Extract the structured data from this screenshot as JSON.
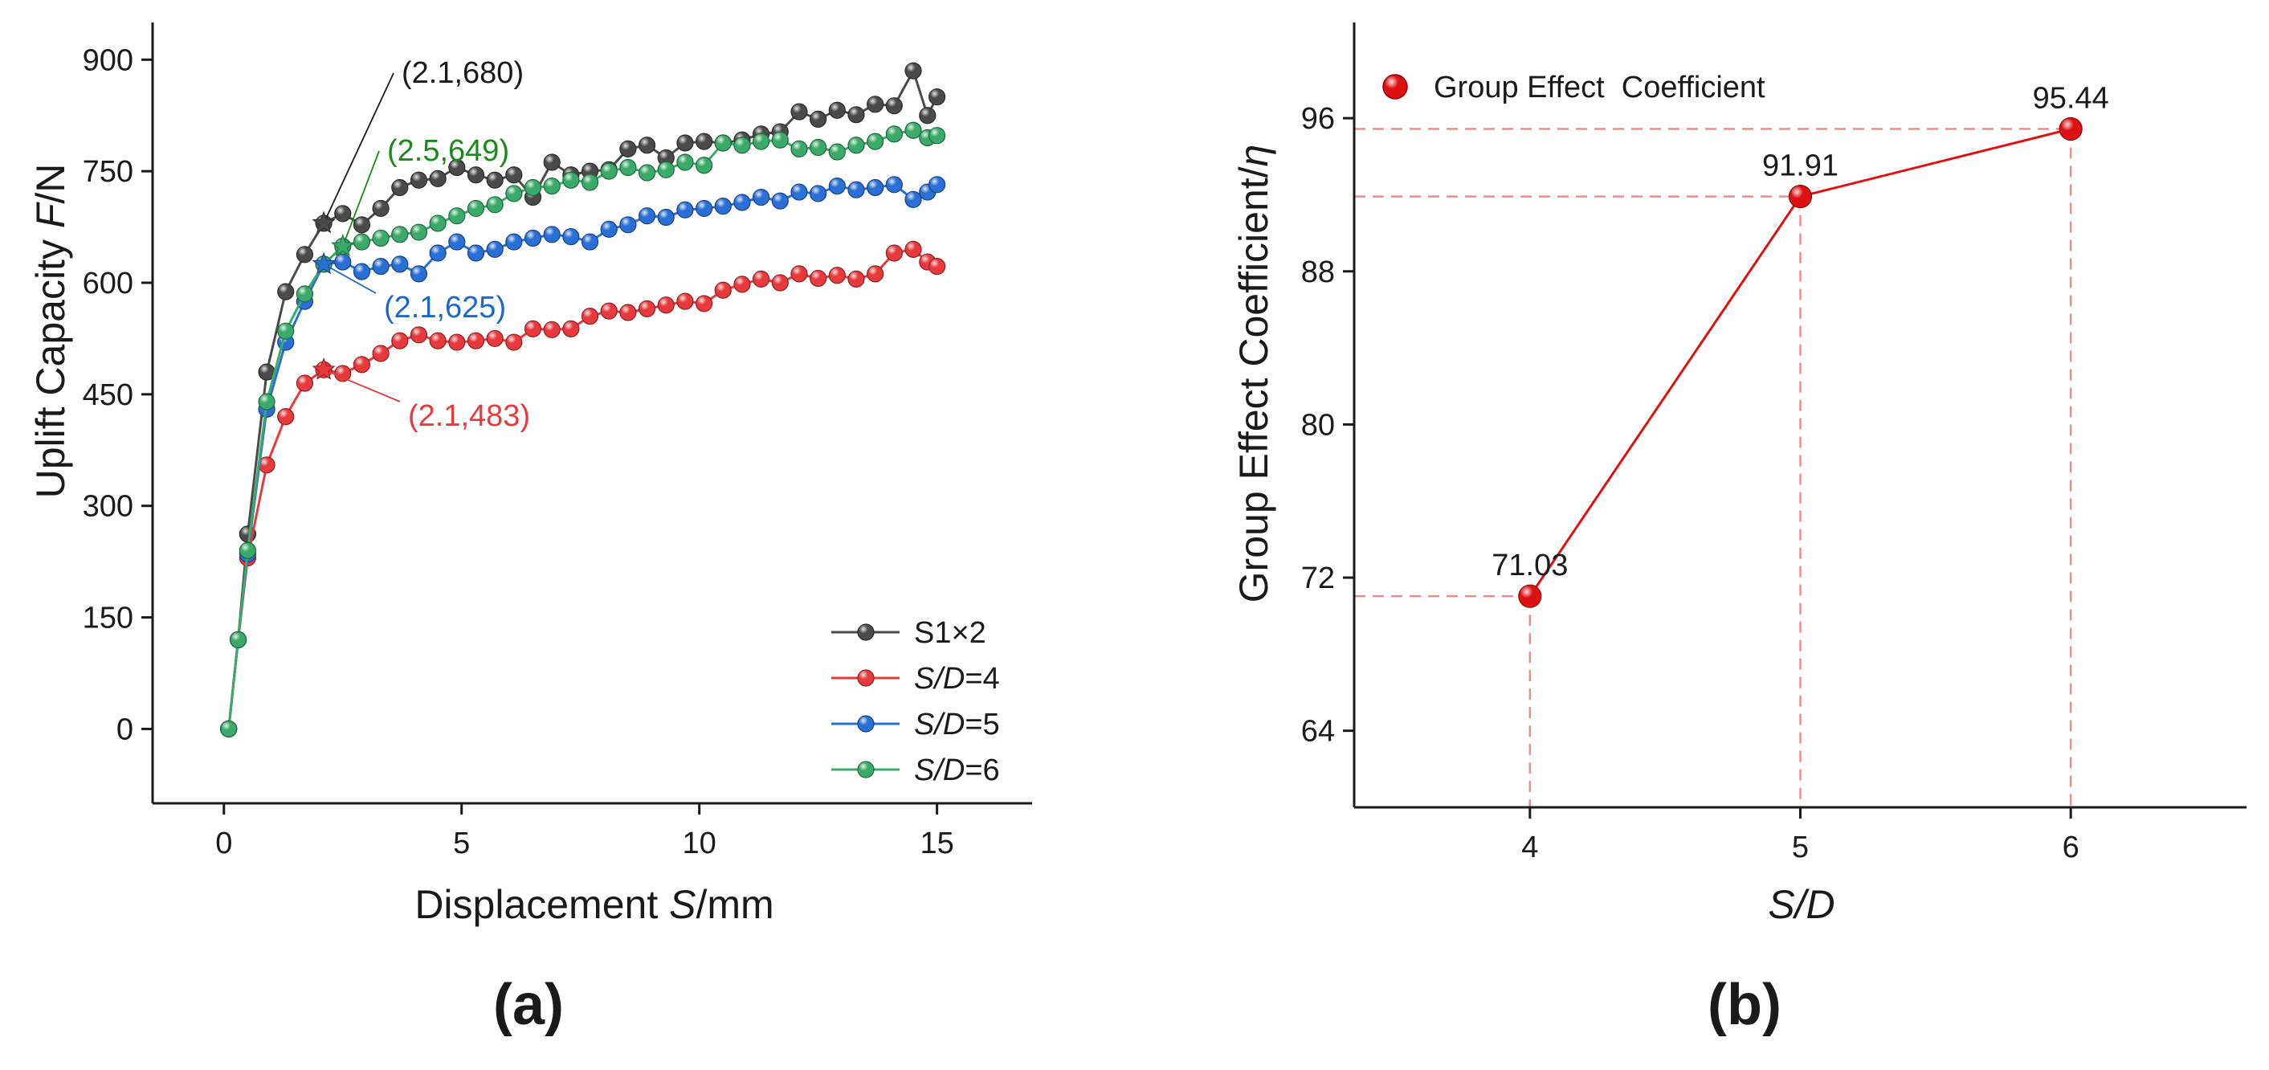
{
  "chart_data": [
    {
      "type": "line",
      "panel_label": "(a)",
      "title": "",
      "xlabel": {
        "pre": "Displacement ",
        "var": "S",
        "post": "/mm"
      },
      "ylabel": {
        "pre": "Uplift Capacity ",
        "var": "F",
        "post": "/N"
      },
      "xlim": [
        -1.5,
        17
      ],
      "ylim": [
        -100,
        950
      ],
      "xticks": [
        0,
        5,
        10,
        15
      ],
      "yticks": [
        0,
        150,
        300,
        450,
        600,
        750,
        900
      ],
      "legend_position": "bottom-right",
      "series": [
        {
          "name": "S1×2",
          "legend": {
            "var": "",
            "text": "S1×2"
          },
          "color": "#4a4a4a",
          "points": [
            [
              0.1,
              0
            ],
            [
              0.3,
              120
            ],
            [
              0.5,
              262
            ],
            [
              0.9,
              480
            ],
            [
              1.3,
              588
            ],
            [
              1.7,
              638
            ],
            [
              2.1,
              680
            ],
            [
              2.5,
              693
            ],
            [
              2.9,
              678
            ],
            [
              3.3,
              700
            ],
            [
              3.7,
              728
            ],
            [
              4.1,
              738
            ],
            [
              4.5,
              740
            ],
            [
              4.9,
              755
            ],
            [
              5.3,
              745
            ],
            [
              5.7,
              738
            ],
            [
              6.1,
              745
            ],
            [
              6.5,
              715
            ],
            [
              6.9,
              762
            ],
            [
              7.3,
              745
            ],
            [
              7.7,
              750
            ],
            [
              8.1,
              752
            ],
            [
              8.5,
              780
            ],
            [
              8.9,
              785
            ],
            [
              9.3,
              768
            ],
            [
              9.7,
              788
            ],
            [
              10.1,
              790
            ],
            [
              10.5,
              788
            ],
            [
              10.9,
              792
            ],
            [
              11.3,
              800
            ],
            [
              11.7,
              803
            ],
            [
              12.1,
              830
            ],
            [
              12.5,
              820
            ],
            [
              12.9,
              832
            ],
            [
              13.3,
              826
            ],
            [
              13.7,
              840
            ],
            [
              14.1,
              838
            ],
            [
              14.5,
              885
            ],
            [
              14.8,
              825
            ],
            [
              15.0,
              850
            ]
          ]
        },
        {
          "name": "S/D=4",
          "legend": {
            "var": "S/D",
            "text": "=4"
          },
          "color": "#e8393d",
          "points": [
            [
              0.1,
              0
            ],
            [
              0.3,
              120
            ],
            [
              0.5,
              230
            ],
            [
              0.9,
              355
            ],
            [
              1.3,
              420
            ],
            [
              1.7,
              465
            ],
            [
              2.1,
              483
            ],
            [
              2.5,
              478
            ],
            [
              2.9,
              490
            ],
            [
              3.3,
              505
            ],
            [
              3.7,
              522
            ],
            [
              4.1,
              530
            ],
            [
              4.5,
              522
            ],
            [
              4.9,
              520
            ],
            [
              5.3,
              522
            ],
            [
              5.7,
              525
            ],
            [
              6.1,
              520
            ],
            [
              6.5,
              538
            ],
            [
              6.9,
              537
            ],
            [
              7.3,
              538
            ],
            [
              7.7,
              555
            ],
            [
              8.1,
              562
            ],
            [
              8.5,
              560
            ],
            [
              8.9,
              565
            ],
            [
              9.3,
              570
            ],
            [
              9.7,
              575
            ],
            [
              10.1,
              572
            ],
            [
              10.5,
              590
            ],
            [
              10.9,
              598
            ],
            [
              11.3,
              605
            ],
            [
              11.7,
              600
            ],
            [
              12.1,
              612
            ],
            [
              12.5,
              606
            ],
            [
              12.9,
              610
            ],
            [
              13.3,
              605
            ],
            [
              13.7,
              612
            ],
            [
              14.1,
              640
            ],
            [
              14.5,
              645
            ],
            [
              14.8,
              628
            ],
            [
              15.0,
              622
            ]
          ]
        },
        {
          "name": "S/D=5",
          "legend": {
            "var": "S/D",
            "text": "=5"
          },
          "color": "#2a6fd6",
          "points": [
            [
              0.1,
              0
            ],
            [
              0.3,
              120
            ],
            [
              0.5,
              235
            ],
            [
              0.9,
              430
            ],
            [
              1.3,
              520
            ],
            [
              1.7,
              575
            ],
            [
              2.1,
              625
            ],
            [
              2.5,
              628
            ],
            [
              2.9,
              615
            ],
            [
              3.3,
              622
            ],
            [
              3.7,
              625
            ],
            [
              4.1,
              612
            ],
            [
              4.5,
              640
            ],
            [
              4.9,
              655
            ],
            [
              5.3,
              640
            ],
            [
              5.7,
              645
            ],
            [
              6.1,
              655
            ],
            [
              6.5,
              660
            ],
            [
              6.9,
              665
            ],
            [
              7.3,
              662
            ],
            [
              7.7,
              655
            ],
            [
              8.1,
              672
            ],
            [
              8.5,
              678
            ],
            [
              8.9,
              690
            ],
            [
              9.3,
              688
            ],
            [
              9.7,
              698
            ],
            [
              10.1,
              700
            ],
            [
              10.5,
              703
            ],
            [
              10.9,
              708
            ],
            [
              11.3,
              715
            ],
            [
              11.7,
              710
            ],
            [
              12.1,
              722
            ],
            [
              12.5,
              720
            ],
            [
              12.9,
              730
            ],
            [
              13.3,
              725
            ],
            [
              13.7,
              728
            ],
            [
              14.1,
              732
            ],
            [
              14.5,
              712
            ],
            [
              14.8,
              722
            ],
            [
              15.0,
              732
            ]
          ]
        },
        {
          "name": "S/D=6",
          "legend": {
            "var": "S/D",
            "text": "=6"
          },
          "color": "#3aaa6a",
          "points": [
            [
              0.1,
              0
            ],
            [
              0.3,
              120
            ],
            [
              0.5,
              240
            ],
            [
              0.9,
              440
            ],
            [
              1.3,
              535
            ],
            [
              1.7,
              585
            ],
            [
              2.1,
              625
            ],
            [
              2.5,
              649
            ],
            [
              2.9,
              655
            ],
            [
              3.3,
              660
            ],
            [
              3.7,
              665
            ],
            [
              4.1,
              668
            ],
            [
              4.5,
              680
            ],
            [
              4.9,
              690
            ],
            [
              5.3,
              700
            ],
            [
              5.7,
              705
            ],
            [
              6.1,
              720
            ],
            [
              6.5,
              728
            ],
            [
              6.9,
              730
            ],
            [
              7.3,
              738
            ],
            [
              7.7,
              735
            ],
            [
              8.1,
              750
            ],
            [
              8.5,
              755
            ],
            [
              8.9,
              748
            ],
            [
              9.3,
              752
            ],
            [
              9.7,
              762
            ],
            [
              10.1,
              758
            ],
            [
              10.5,
              788
            ],
            [
              10.9,
              785
            ],
            [
              11.3,
              790
            ],
            [
              11.7,
              792
            ],
            [
              12.1,
              780
            ],
            [
              12.5,
              782
            ],
            [
              12.9,
              776
            ],
            [
              13.3,
              785
            ],
            [
              13.7,
              790
            ],
            [
              14.1,
              800
            ],
            [
              14.5,
              805
            ],
            [
              14.8,
              795
            ],
            [
              15.0,
              798
            ]
          ]
        }
      ],
      "annotations": [
        {
          "text": "(2.1,680)",
          "x": 2.1,
          "y": 680,
          "color": "#1a1a1a",
          "star_color": "#4a4a4a"
        },
        {
          "text": "(2.5,649)",
          "x": 2.5,
          "y": 649,
          "color": "#1b8a1b",
          "star_color": "#3aaa6a"
        },
        {
          "text": "(2.1,625)",
          "x": 2.1,
          "y": 625,
          "color": "#1f66c8",
          "star_color": "#2a6fd6"
        },
        {
          "text": "(2.1,483)",
          "x": 2.1,
          "y": 483,
          "color": "#e8393d",
          "star_color": "#e8393d"
        }
      ]
    },
    {
      "type": "line",
      "panel_label": "(b)",
      "title": "",
      "xlabel": "S/D",
      "ylabel": {
        "pre": "Group Effect Coefficient/",
        "var": "η",
        "post": ""
      },
      "categories": [
        "4",
        "5",
        "6"
      ],
      "values": [
        71.03,
        91.91,
        95.44
      ],
      "value_labels": [
        "71.03",
        "91.91",
        "95.44"
      ],
      "xlim": [
        3.35,
        6.65
      ],
      "ylim": [
        60,
        101
      ],
      "yticks": [
        64,
        72,
        80,
        88,
        96
      ],
      "series_name": "Group Effect  Coefficient",
      "legend_position": "top-left",
      "line_color": "#dd1111",
      "guide_color": "#f08c8c"
    }
  ]
}
